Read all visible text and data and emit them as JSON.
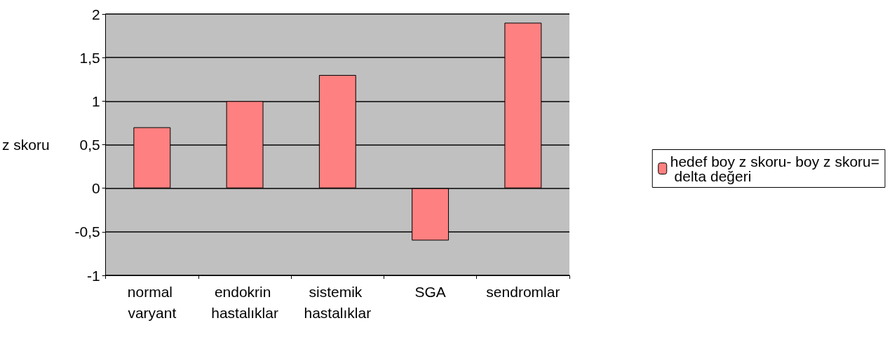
{
  "chart_data": {
    "type": "bar",
    "ylabel": "z skoru",
    "categories": [
      "normal varyant",
      "endokrin hastalıklar",
      "sistemik hastalıklar",
      "SGA",
      "sendromlar"
    ],
    "series": [
      {
        "name": "hedef boy z skoru- boy z skoru= delta değeri",
        "color": "#ff8080",
        "values": [
          0.7,
          1.0,
          1.3,
          -0.6,
          1.9
        ]
      }
    ],
    "ylim": [
      -1,
      2
    ],
    "yticks": [
      -1,
      {
        "value": -0.5,
        "label": "-0,5"
      },
      0,
      {
        "value": 0.5,
        "label": "0,5"
      },
      1,
      {
        "value": 1.5,
        "label": "1,5"
      },
      2
    ],
    "grid": "y",
    "legend": "right"
  }
}
